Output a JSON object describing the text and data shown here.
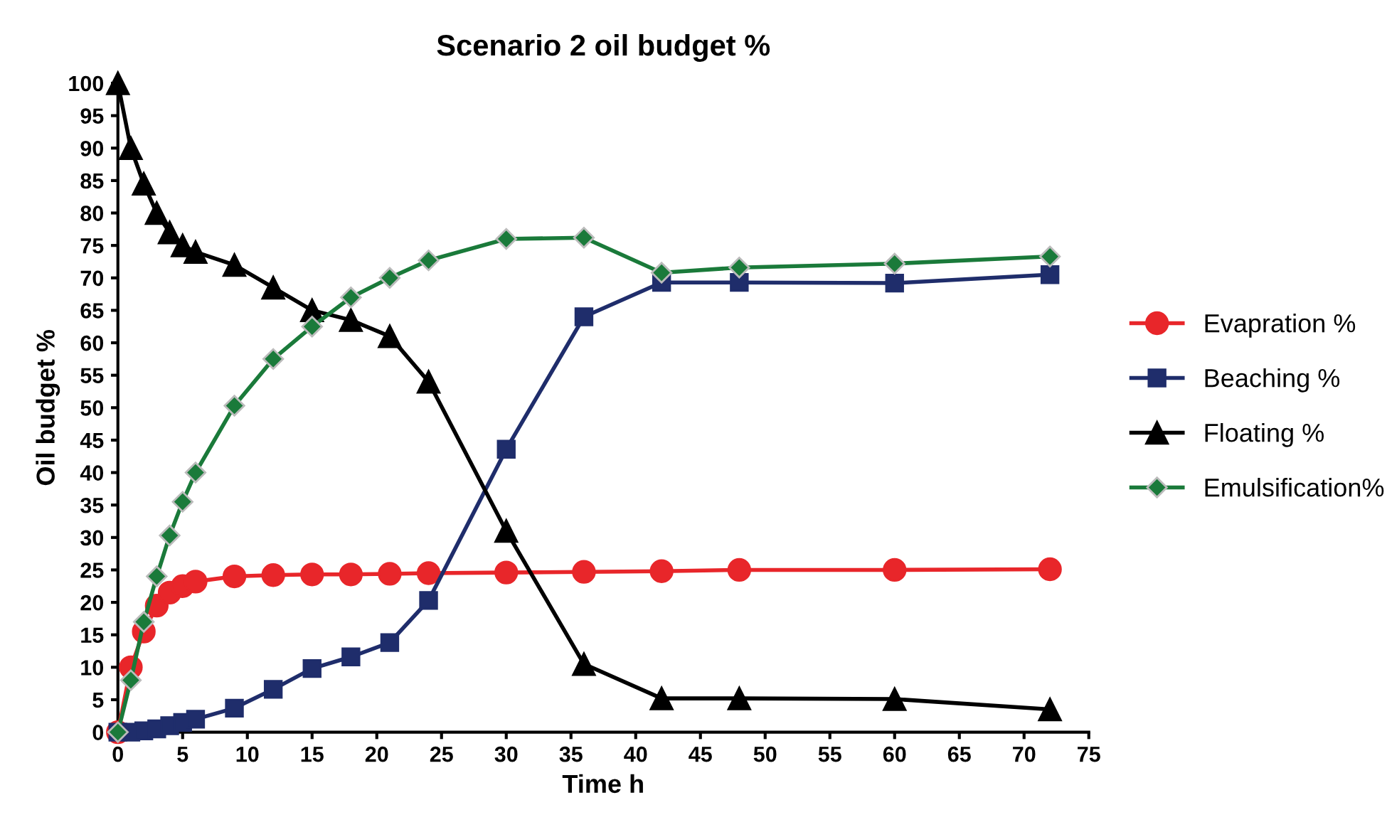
{
  "chart_data": {
    "type": "line",
    "title": "Scenario 2 oil budget %",
    "xlabel": "Time h",
    "ylabel": "Oil budget %",
    "x": [
      0,
      1,
      2,
      3,
      4,
      5,
      6,
      9,
      12,
      15,
      18,
      21,
      24,
      30,
      36,
      42,
      48,
      60,
      72
    ],
    "series": [
      {
        "name": "Evapration %",
        "color": "#e8262a",
        "marker": "circle",
        "values": [
          0,
          10,
          15.5,
          19.5,
          21.5,
          22.5,
          23.2,
          24,
          24.2,
          24.3,
          24.3,
          24.4,
          24.5,
          24.6,
          24.7,
          24.8,
          25,
          25,
          25.1
        ]
      },
      {
        "name": "Beaching %",
        "color": "#1f2d6b",
        "marker": "square",
        "values": [
          0,
          0,
          0.2,
          0.5,
          1,
          1.5,
          2,
          3.7,
          6.6,
          9.8,
          11.6,
          13.8,
          20.3,
          43.6,
          64,
          69.3,
          69.3,
          69.2,
          70.5
        ]
      },
      {
        "name": "Floating %",
        "color": "#000000",
        "marker": "triangle",
        "values": [
          100,
          90,
          84.5,
          80,
          77,
          75,
          74,
          72,
          68.5,
          65,
          63.5,
          61,
          54,
          31,
          10.5,
          5.2,
          5.2,
          5.1,
          3.5
        ]
      },
      {
        "name": "Emulsification%",
        "color": "#1a7a3a",
        "marker": "diamond",
        "values": [
          0,
          8,
          17,
          24,
          30.3,
          35.5,
          40,
          50.3,
          57.5,
          62.5,
          67,
          70,
          72.7,
          76,
          76.2,
          70.8,
          71.6,
          72.2,
          73.3
        ]
      }
    ],
    "xlim": [
      0,
      75
    ],
    "xticks": [
      0,
      5,
      10,
      15,
      20,
      25,
      30,
      35,
      40,
      45,
      50,
      55,
      60,
      65,
      70,
      75
    ],
    "ylim": [
      0,
      100
    ],
    "yticks": [
      0,
      5,
      10,
      15,
      20,
      25,
      30,
      35,
      40,
      45,
      50,
      55,
      60,
      65,
      70,
      75,
      80,
      85,
      90,
      95,
      100
    ],
    "grid": false,
    "legend": "right",
    "line_style": "solid"
  }
}
